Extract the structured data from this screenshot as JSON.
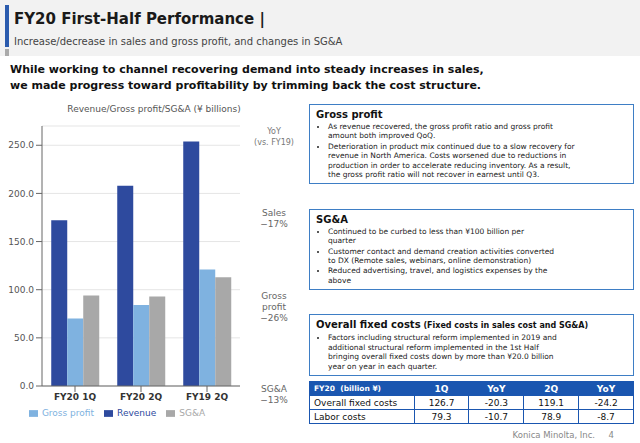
{
  "title": "FY20 First-Half Performance |",
  "subtitle": "Increase/decrease in sales and gross profit, and changes in SG&A",
  "headline": [
    "While working to channel recovering demand into steady increases in sales,",
    "we made progress toward profitability by trimming back the cost structure."
  ],
  "chart_data": {
    "type": "bar",
    "title": "Revenue/Gross profit/SG&A (¥ billions)",
    "categories": [
      "FY20 1Q",
      "FY20 2Q",
      "FY19 2Q"
    ],
    "series": [
      {
        "name": "Revenue",
        "color": "#2E4A9E",
        "values": [
          172,
          208,
          254
        ]
      },
      {
        "name": "Gross profit",
        "color": "#7FB2E0",
        "values": [
          70,
          84,
          121
        ]
      },
      {
        "name": "SG&A",
        "color": "#A8A8A8",
        "values": [
          94,
          93,
          113
        ]
      }
    ],
    "ylim": [
      0,
      270
    ],
    "yticks": [
      {
        "value": 0,
        "label": "0.0"
      },
      {
        "value": 50,
        "label": "50.0"
      },
      {
        "value": 100,
        "label": "100.0"
      },
      {
        "value": 150,
        "label": "150.0"
      },
      {
        "value": 200,
        "label": "200.0"
      },
      {
        "value": 250,
        "label": "250.0"
      }
    ],
    "grid": true,
    "legend": "bottom",
    "annotations": [
      "YoY\n(vs. FY19)",
      "Sales\n−17%",
      "Gross\nprofit\n−26%",
      "SG&A\n−13%"
    ]
  },
  "panels": [
    {
      "title": "Gross profit",
      "bullets": [
        "As revenue recovered, the gross profit ratio and gross profit\namount both improved QoQ.",
        "Deterioration in product mix continued due to a slow recovery for\nrevenue in North America. Costs worsened due to reductions in\nproduction in order to accelerate reducing inventory. As a result,\nthe gross profit ratio will not recover in earnest until Q3."
      ]
    },
    {
      "title": "SG&A",
      "bullets": [
        "Continued to be curbed to less than ¥100 billion per\nquarter",
        "Customer contact and demand creation activities converted\nto DX (Remote sales, webinars, online demonstration)",
        "Reduced advertising, travel, and logistics expenses by the\nabove"
      ]
    },
    {
      "title": "Overall fixed costs",
      "subtitle": " (Fixed costs in sales cost and SG&A)",
      "bullets": [
        "Factors including structural reform implemented in 2019 and\nadditional structural reform implemented in the 1st Half\nbringing overall fixed costs down by more than ¥20.0 billion\nyear on year in each quarter."
      ]
    }
  ],
  "table": {
    "header": [
      "FY20  (billion ¥)",
      "1Q",
      "YoY",
      "2Q",
      "YoY"
    ],
    "rows": [
      [
        "Overall fixed costs",
        "126.7",
        "-20.3",
        "119.1",
        "-24.2"
      ],
      [
        "Labor costs",
        "79.3",
        "-10.7",
        "78.9",
        "-8.7"
      ]
    ]
  },
  "footer": "Konica Minolta, Inc.     4"
}
